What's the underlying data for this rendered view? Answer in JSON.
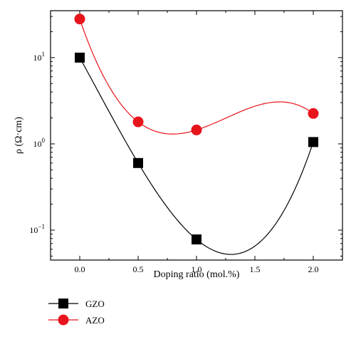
{
  "chart_data": {
    "type": "line",
    "xlabel": "Doping ratio (mol.%)",
    "ylabel": "ρ (Ω·cm)",
    "y_scale": "log",
    "xlim": [
      -0.25,
      2.25
    ],
    "ylim": [
      0.045,
      35
    ],
    "x_ticks": [
      "0.0",
      "0.5",
      "1.0",
      "1.5",
      "2.0"
    ],
    "x_tick_values": [
      0,
      0.5,
      1.0,
      1.5,
      2.0
    ],
    "y_ticks": [
      {
        "value": 10,
        "base": "10",
        "exp": "1"
      },
      {
        "value": 1,
        "base": "10",
        "exp": "0"
      },
      {
        "value": 0.1,
        "base": "10",
        "exp": "−1"
      }
    ],
    "legend_position": "bottom-left, below plot",
    "series": [
      {
        "name": "GZO",
        "marker": "square",
        "color": "#000000",
        "x": [
          0,
          0.5,
          1.0,
          2.0
        ],
        "y": [
          10,
          0.6,
          0.078,
          1.05
        ]
      },
      {
        "name": "AZO",
        "marker": "circle",
        "color": "#e8141c",
        "x": [
          0,
          0.5,
          1.0,
          2.0
        ],
        "y": [
          28,
          1.8,
          1.45,
          2.25
        ]
      }
    ]
  }
}
